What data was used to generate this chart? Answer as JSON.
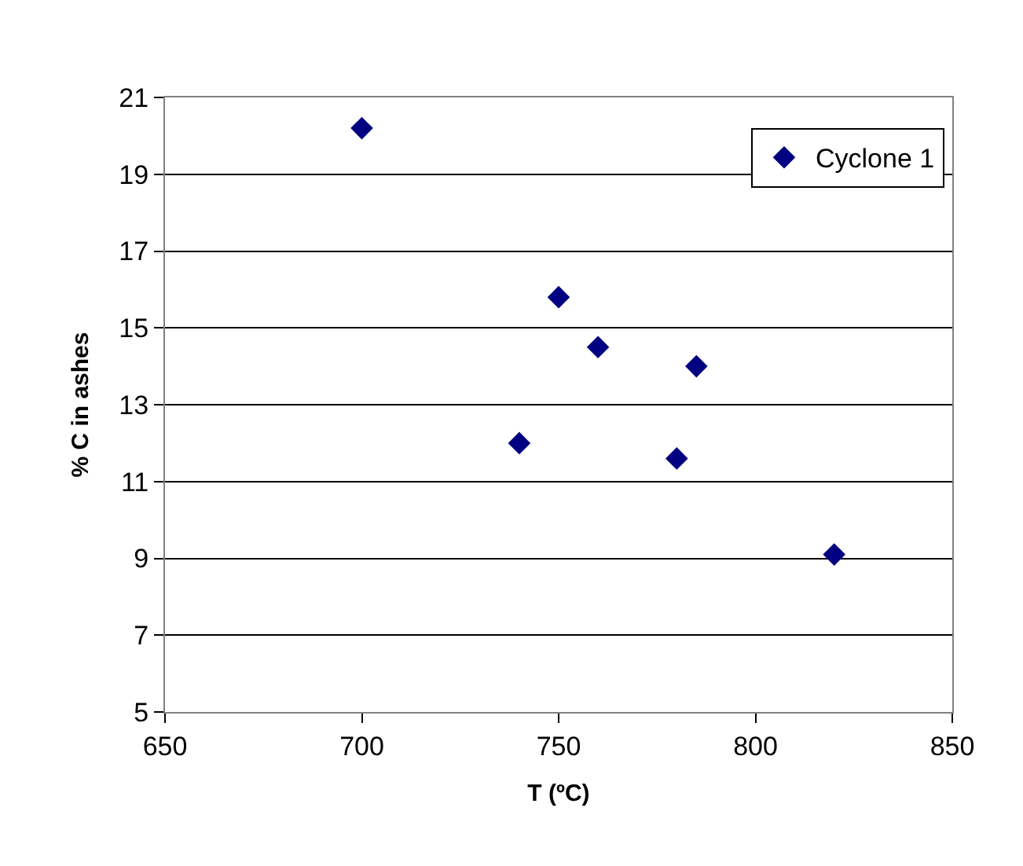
{
  "chart_data": {
    "type": "scatter",
    "xlabel": "T (ºC)",
    "ylabel": "% C in ashes",
    "x": [
      700,
      740,
      750,
      760,
      780,
      785,
      820
    ],
    "series": [
      {
        "name": "Cyclone 1",
        "color": "#000080",
        "values": [
          20.2,
          12.0,
          15.8,
          14.5,
          11.6,
          14.0,
          9.1
        ]
      }
    ],
    "xlim": [
      650,
      850
    ],
    "xticks": [
      650,
      700,
      750,
      800,
      850
    ],
    "ylim": [
      5,
      21
    ],
    "yticks": [
      5,
      7,
      9,
      11,
      13,
      15,
      17,
      19,
      21
    ],
    "grid": "y",
    "legend": "top right",
    "marker": "diamond"
  }
}
